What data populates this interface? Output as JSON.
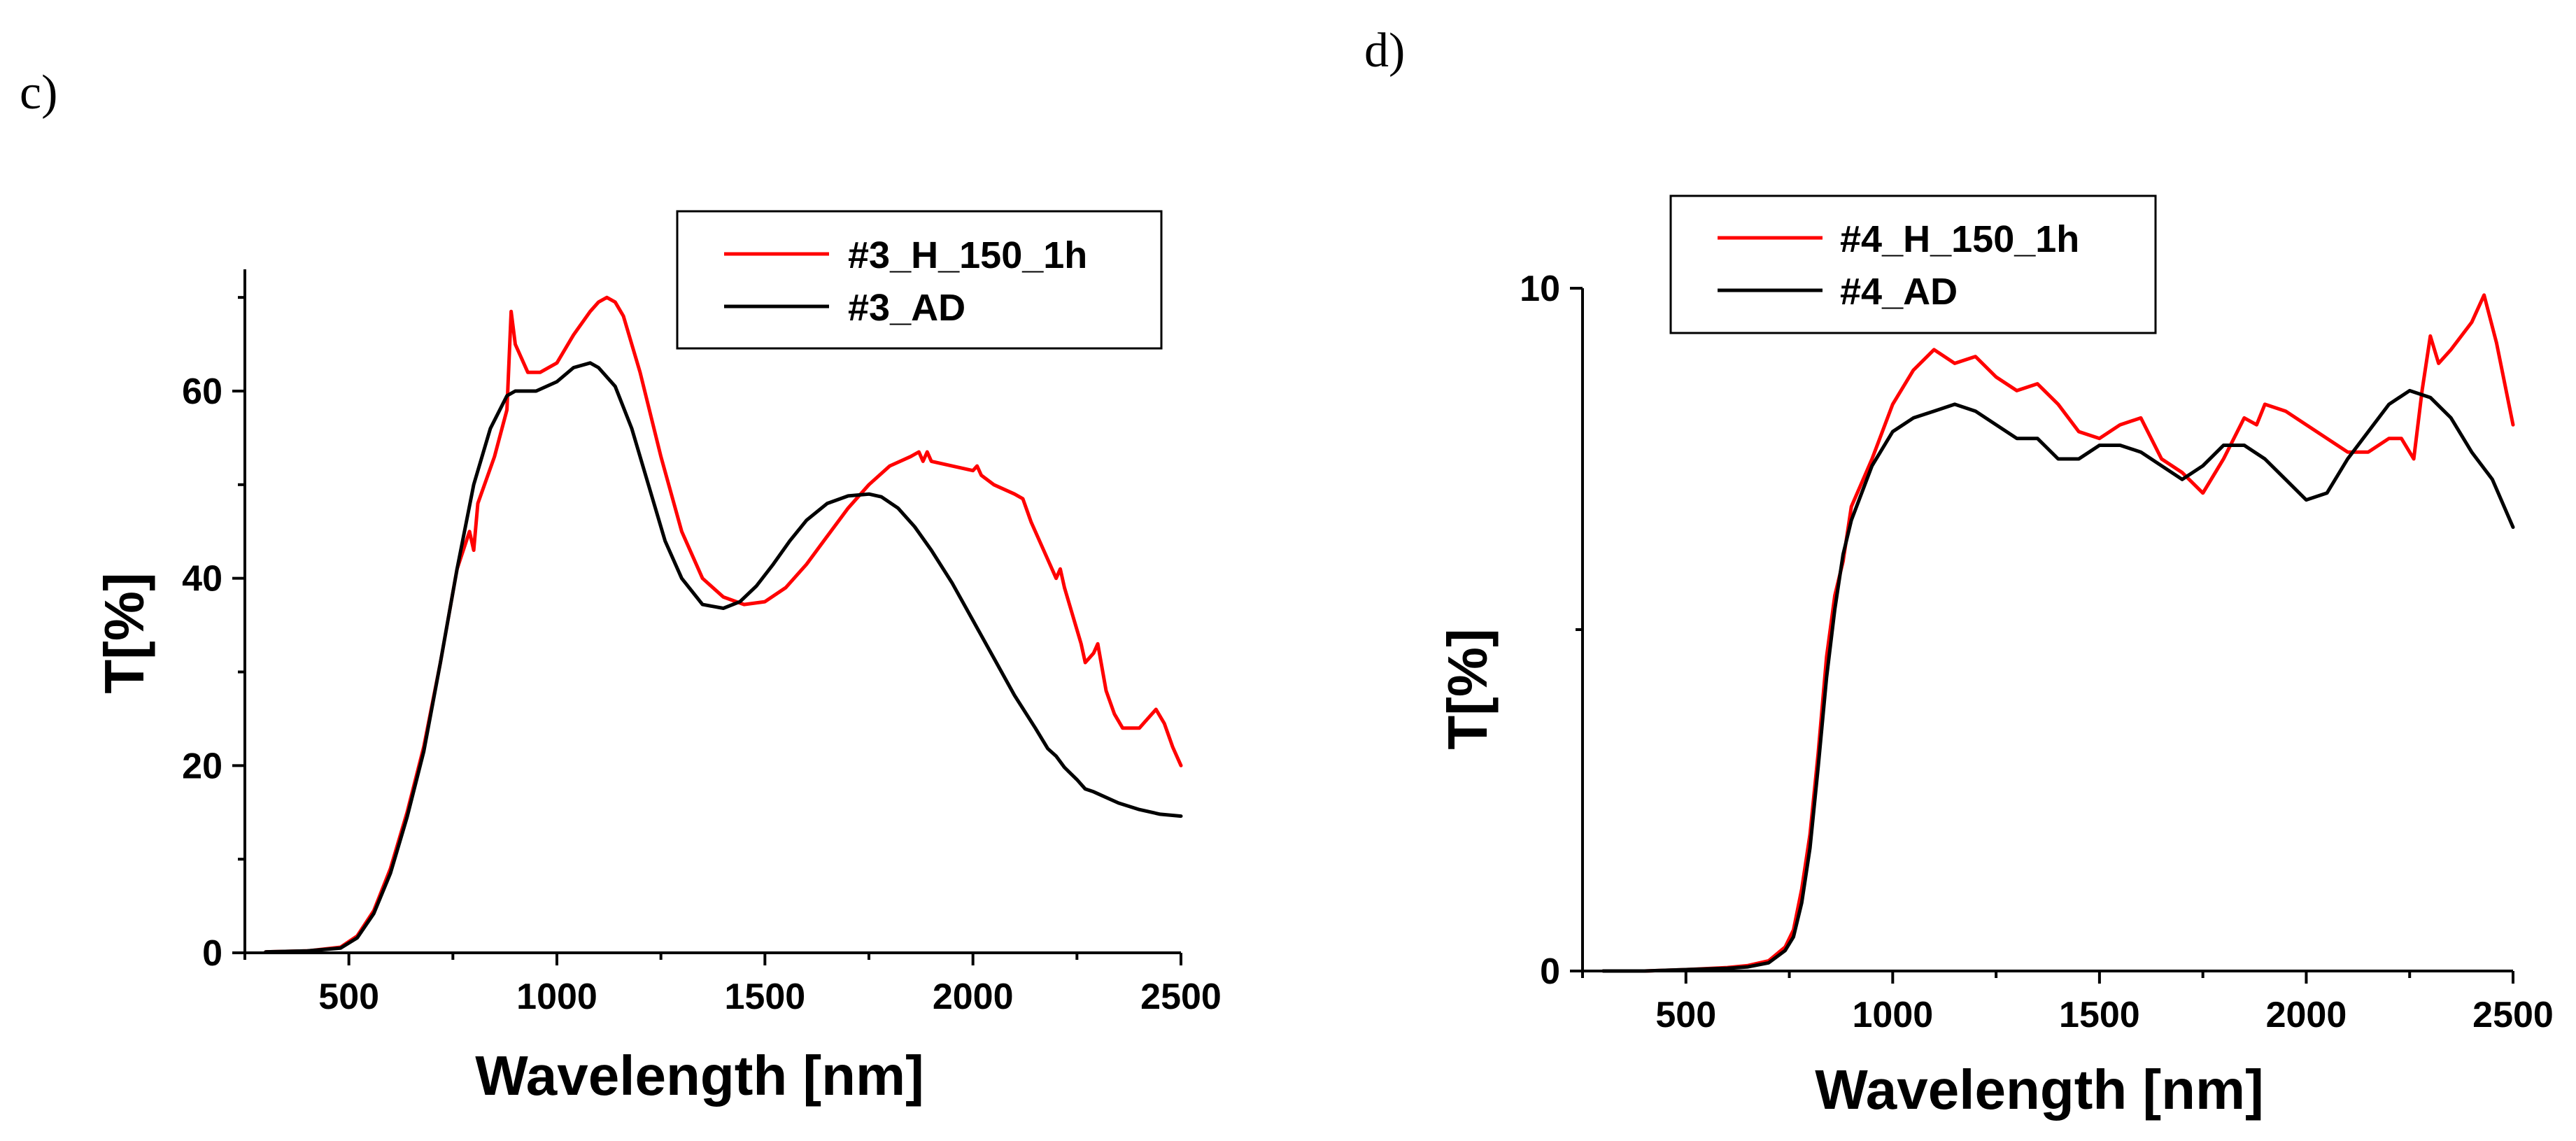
{
  "chart_data": [
    {
      "type": "line",
      "panel_label": "c)",
      "title": "",
      "xlabel": "Wavelength [nm]",
      "ylabel": "T[%]",
      "xlim": [
        250,
        2500
      ],
      "ylim": [
        0,
        73
      ],
      "xticks": [
        500,
        1000,
        1500,
        2000,
        2500
      ],
      "yticks": [
        0,
        20,
        40,
        60
      ],
      "legend_position": "top-right",
      "series": [
        {
          "name": "#3_H_150_1h",
          "color": "#ff0000",
          "x": [
            300,
            400,
            480,
            520,
            560,
            600,
            640,
            680,
            720,
            760,
            790,
            800,
            810,
            850,
            880,
            890,
            900,
            930,
            960,
            1000,
            1040,
            1080,
            1100,
            1120,
            1140,
            1160,
            1200,
            1250,
            1300,
            1350,
            1400,
            1450,
            1500,
            1550,
            1600,
            1650,
            1700,
            1750,
            1800,
            1850,
            1870,
            1880,
            1890,
            1900,
            1950,
            2000,
            2010,
            2020,
            2050,
            2100,
            2120,
            2140,
            2160,
            2180,
            2200,
            2210,
            2220,
            2240,
            2260,
            2270,
            2290,
            2300,
            2320,
            2340,
            2360,
            2380,
            2400,
            2420,
            2440,
            2460,
            2480,
            2500
          ],
          "y": [
            0.1,
            0.2,
            0.6,
            1.8,
            4.5,
            9,
            15,
            22,
            31,
            41,
            45,
            43,
            48,
            53,
            58,
            68.5,
            65,
            62,
            62,
            63,
            66,
            68.5,
            69.5,
            70,
            69.5,
            68,
            62,
            53,
            45,
            40,
            38,
            37.2,
            37.5,
            39,
            41.5,
            44.5,
            47.5,
            50,
            52,
            53,
            53.5,
            52.5,
            53.5,
            52.5,
            52,
            51.5,
            52,
            51,
            50,
            49,
            48.5,
            46,
            44,
            42,
            40,
            41,
            39,
            36,
            33,
            31,
            32,
            33,
            28,
            25.5,
            24,
            24,
            24,
            25,
            26,
            24.5,
            22,
            20
          ]
        },
        {
          "name": "#3_AD",
          "color": "#000000",
          "x": [
            300,
            400,
            480,
            520,
            560,
            600,
            640,
            680,
            720,
            760,
            800,
            840,
            880,
            900,
            950,
            1000,
            1040,
            1080,
            1100,
            1140,
            1180,
            1220,
            1260,
            1300,
            1350,
            1400,
            1440,
            1480,
            1520,
            1560,
            1600,
            1650,
            1700,
            1750,
            1780,
            1820,
            1860,
            1900,
            1950,
            2000,
            2050,
            2100,
            2150,
            2180,
            2200,
            2220,
            2250,
            2270,
            2290,
            2310,
            2350,
            2400,
            2450,
            2500
          ],
          "y": [
            0.1,
            0.2,
            0.5,
            1.6,
            4.2,
            8.5,
            14.5,
            21.5,
            31,
            41,
            50,
            56,
            59.5,
            60,
            60,
            61,
            62.5,
            63,
            62.5,
            60.5,
            56,
            50,
            44,
            40,
            37.2,
            36.8,
            37.5,
            39.2,
            41.5,
            44,
            46.2,
            48,
            48.8,
            49,
            48.7,
            47.5,
            45.5,
            43,
            39.5,
            35.5,
            31.5,
            27.5,
            24,
            21.8,
            21,
            19.8,
            18.5,
            17.5,
            17.2,
            16.8,
            16,
            15.3,
            14.8,
            14.6
          ]
        }
      ]
    },
    {
      "type": "line",
      "panel_label": "d)",
      "title": "",
      "xlabel": "Wavelength [nm]",
      "ylabel": "T[%]",
      "xlim": [
        250,
        2500
      ],
      "ylim": [
        0,
        10
      ],
      "xticks": [
        500,
        1000,
        1500,
        2000,
        2500
      ],
      "yticks": [
        0,
        10
      ],
      "legend_position": "top-left",
      "series": [
        {
          "name": "#4_H_150_1h",
          "color": "#ff0000",
          "x": [
            300,
            400,
            500,
            600,
            650,
            700,
            740,
            760,
            780,
            800,
            820,
            840,
            860,
            880,
            900,
            950,
            1000,
            1050,
            1100,
            1150,
            1200,
            1250,
            1300,
            1350,
            1400,
            1450,
            1500,
            1550,
            1600,
            1650,
            1700,
            1750,
            1800,
            1850,
            1880,
            1900,
            1950,
            2000,
            2050,
            2100,
            2150,
            2200,
            2230,
            2260,
            2280,
            2300,
            2320,
            2350,
            2400,
            2430,
            2460,
            2500
          ],
          "y": [
            0,
            0,
            0.02,
            0.05,
            0.08,
            0.15,
            0.35,
            0.6,
            1.2,
            2,
            3.2,
            4.6,
            5.5,
            6,
            6.8,
            7.5,
            8.3,
            8.8,
            9.1,
            8.9,
            9,
            8.7,
            8.5,
            8.6,
            8.3,
            7.9,
            7.8,
            8,
            8.1,
            7.5,
            7.3,
            7,
            7.5,
            8.1,
            8,
            8.3,
            8.2,
            8,
            7.8,
            7.6,
            7.6,
            7.8,
            7.8,
            7.5,
            8.5,
            9.3,
            8.9,
            9.1,
            9.5,
            9.9,
            9.2,
            8
          ]
        },
        {
          "name": "#4_AD",
          "color": "#000000",
          "x": [
            300,
            400,
            500,
            600,
            650,
            700,
            740,
            760,
            780,
            800,
            820,
            840,
            860,
            880,
            900,
            950,
            1000,
            1050,
            1100,
            1150,
            1200,
            1250,
            1300,
            1350,
            1400,
            1450,
            1500,
            1550,
            1600,
            1650,
            1700,
            1750,
            1800,
            1850,
            1900,
            1950,
            2000,
            2050,
            2100,
            2150,
            2200,
            2250,
            2300,
            2350,
            2400,
            2450,
            2500
          ],
          "y": [
            0,
            0,
            0.02,
            0.04,
            0.06,
            0.12,
            0.3,
            0.5,
            1.0,
            1.8,
            3.0,
            4.3,
            5.3,
            6.1,
            6.6,
            7.4,
            7.9,
            8.1,
            8.2,
            8.3,
            8.2,
            8,
            7.8,
            7.8,
            7.5,
            7.5,
            7.7,
            7.7,
            7.6,
            7.4,
            7.2,
            7.4,
            7.7,
            7.7,
            7.5,
            7.2,
            6.9,
            7,
            7.5,
            7.9,
            8.3,
            8.5,
            8.4,
            8.1,
            7.6,
            7.2,
            6.5
          ]
        }
      ]
    }
  ]
}
